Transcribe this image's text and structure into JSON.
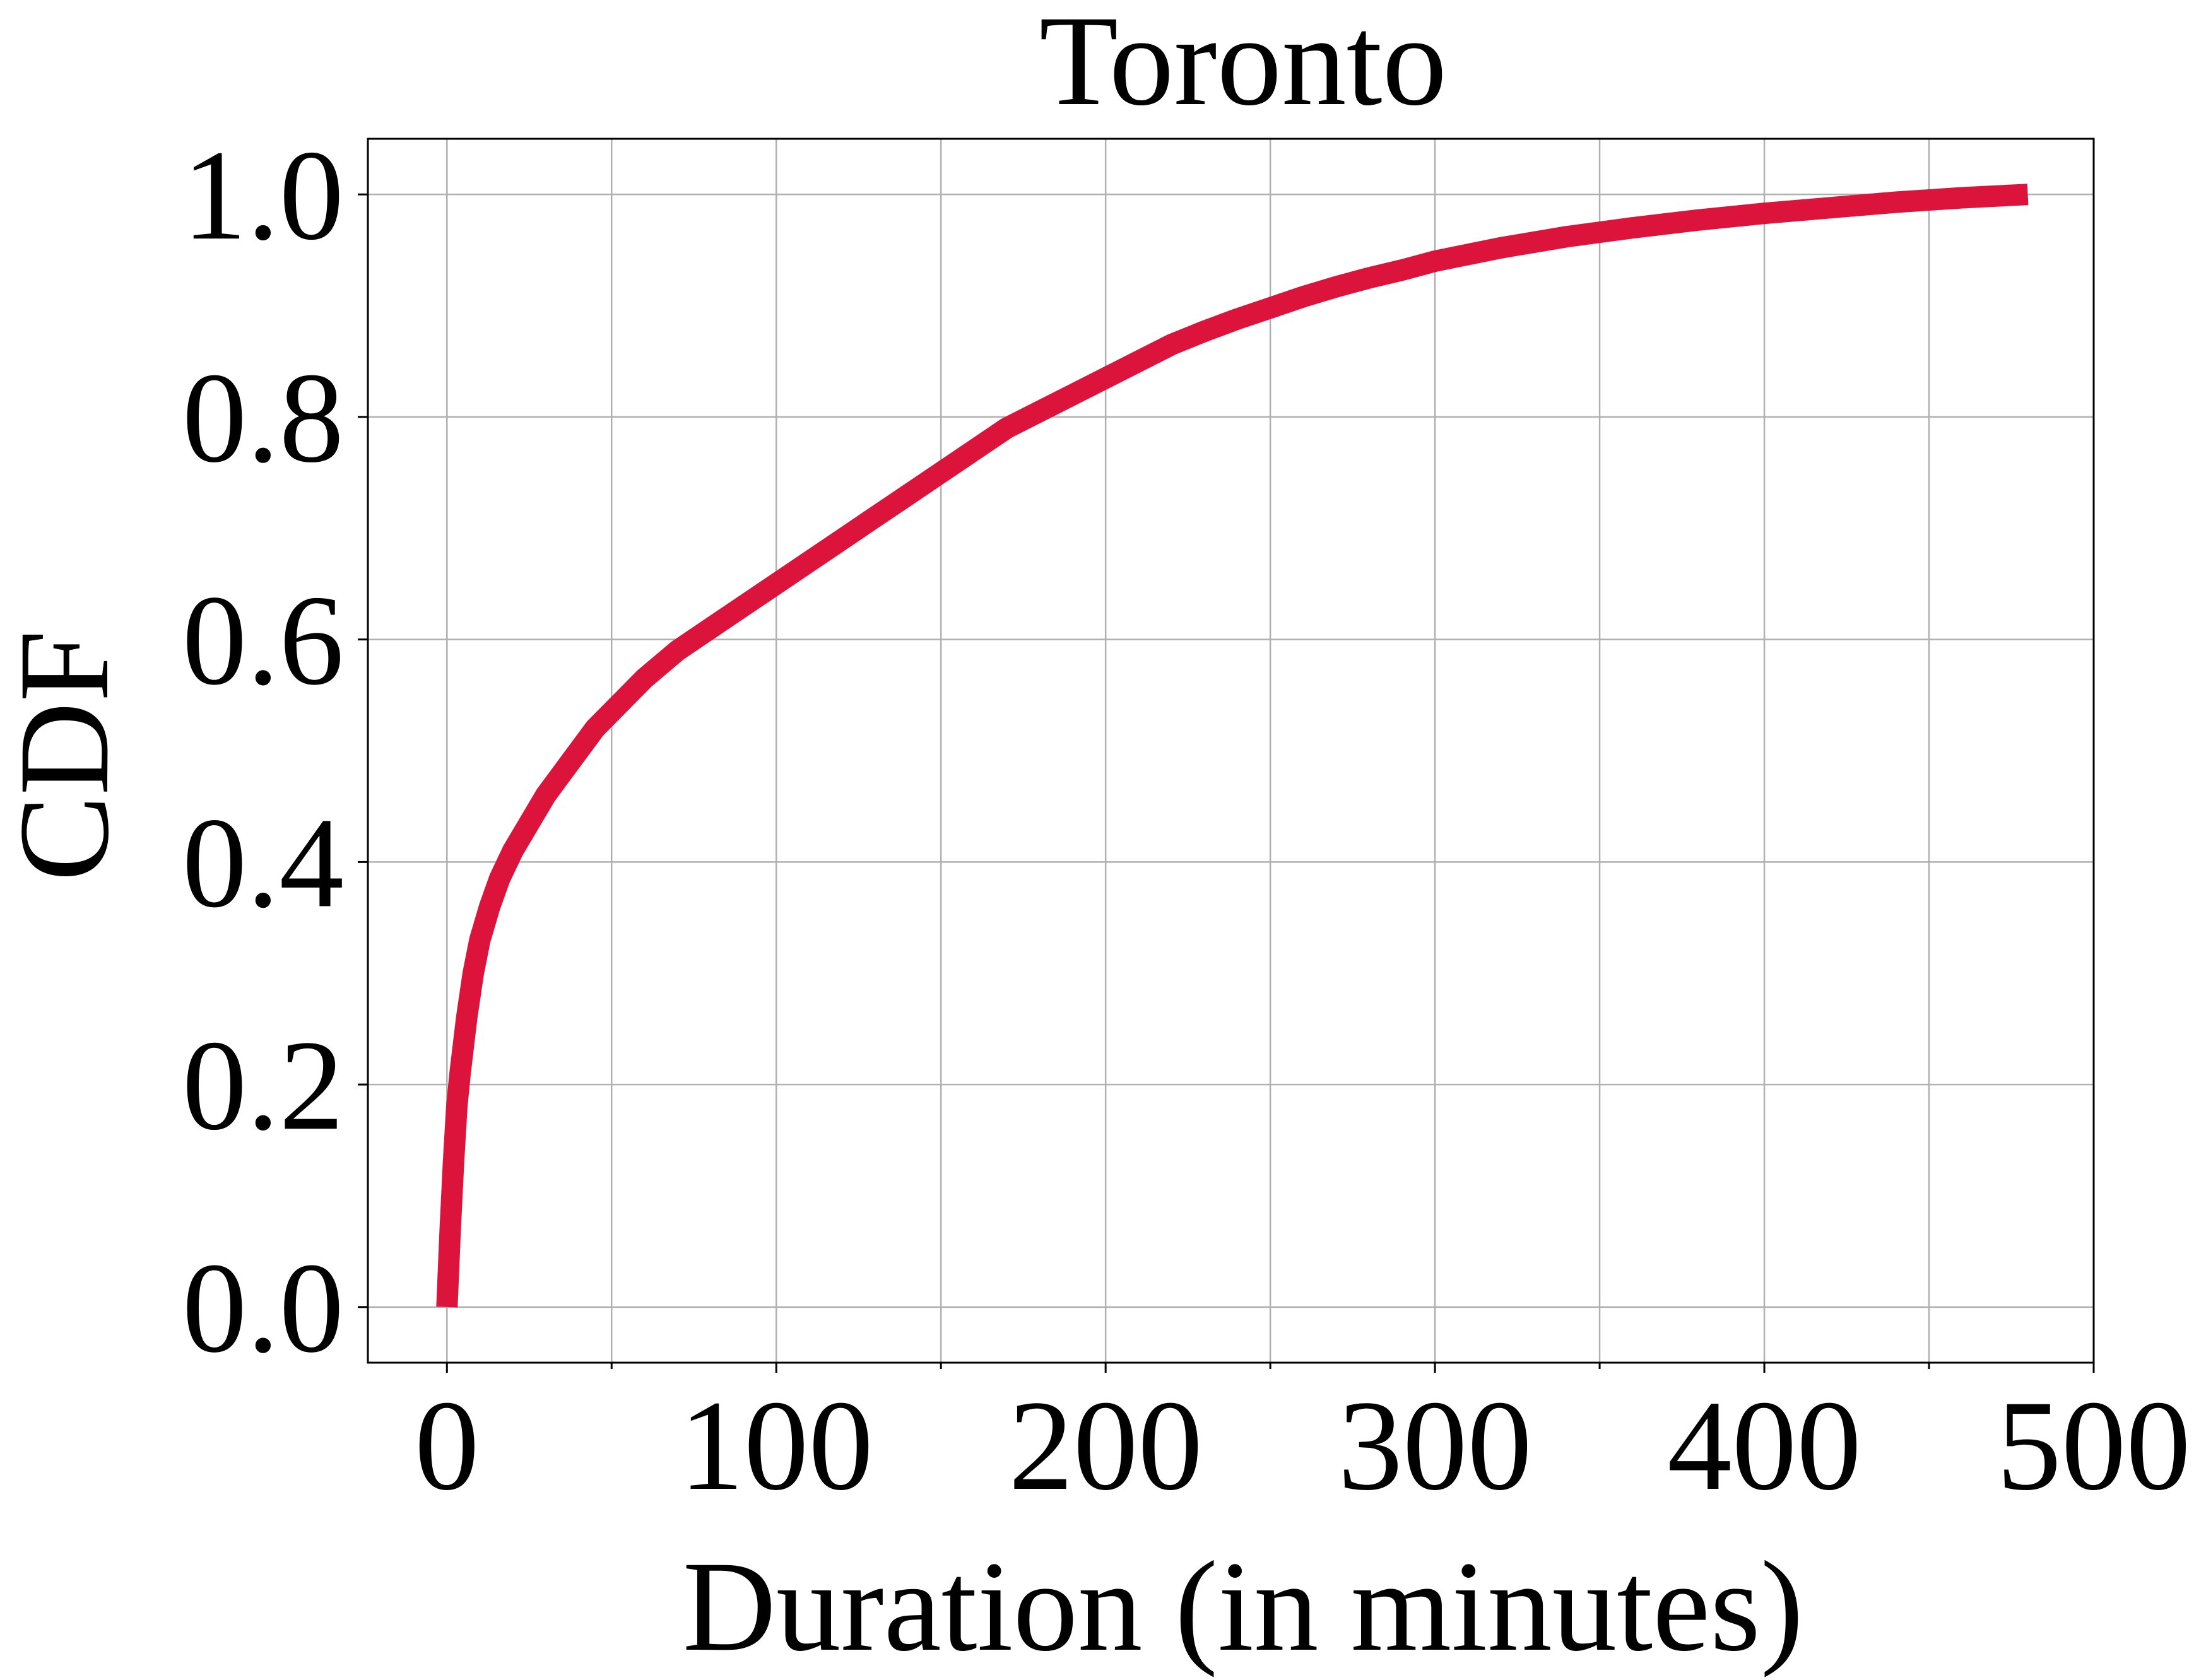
{
  "chart_data": {
    "type": "line",
    "title": "Toronto",
    "xlabel": "Duration (in minutes)",
    "ylabel": "CDF",
    "xlim": [
      -24,
      500
    ],
    "ylim": [
      -0.05,
      1.05
    ],
    "xticks": [
      0,
      100,
      200,
      300,
      400,
      500
    ],
    "xtick_labels": [
      "0",
      "100",
      "200",
      "300",
      "400",
      "500"
    ],
    "x_minor_ticks": [
      50,
      150,
      250,
      350,
      450
    ],
    "yticks": [
      0.0,
      0.2,
      0.4,
      0.6,
      0.8,
      1.0
    ],
    "ytick_labels": [
      "0.0",
      "0.2",
      "0.4",
      "0.6",
      "0.8",
      "1.0"
    ],
    "grid": true,
    "legend": "none",
    "series": [
      {
        "color": "#dc143c",
        "x": [
          0,
          1,
          2,
          3,
          4,
          6,
          8,
          10,
          13,
          16,
          20,
          25,
          30,
          35,
          40,
          45,
          50,
          60,
          70,
          80,
          90,
          100,
          110,
          120,
          130,
          140,
          150,
          160,
          170,
          180,
          190,
          200,
          210,
          220,
          230,
          240,
          250,
          260,
          270,
          280,
          290,
          300,
          320,
          340,
          360,
          380,
          400,
          420,
          440,
          460,
          480
        ],
        "y": [
          0.0,
          0.07,
          0.13,
          0.18,
          0.21,
          0.26,
          0.3,
          0.33,
          0.36,
          0.385,
          0.41,
          0.435,
          0.46,
          0.48,
          0.5,
          0.52,
          0.535,
          0.565,
          0.59,
          0.61,
          0.63,
          0.65,
          0.67,
          0.69,
          0.71,
          0.73,
          0.75,
          0.77,
          0.79,
          0.805,
          0.82,
          0.835,
          0.85,
          0.865,
          0.877,
          0.888,
          0.898,
          0.908,
          0.917,
          0.925,
          0.932,
          0.94,
          0.952,
          0.962,
          0.97,
          0.977,
          0.983,
          0.988,
          0.993,
          0.997,
          1.0
        ]
      }
    ]
  }
}
